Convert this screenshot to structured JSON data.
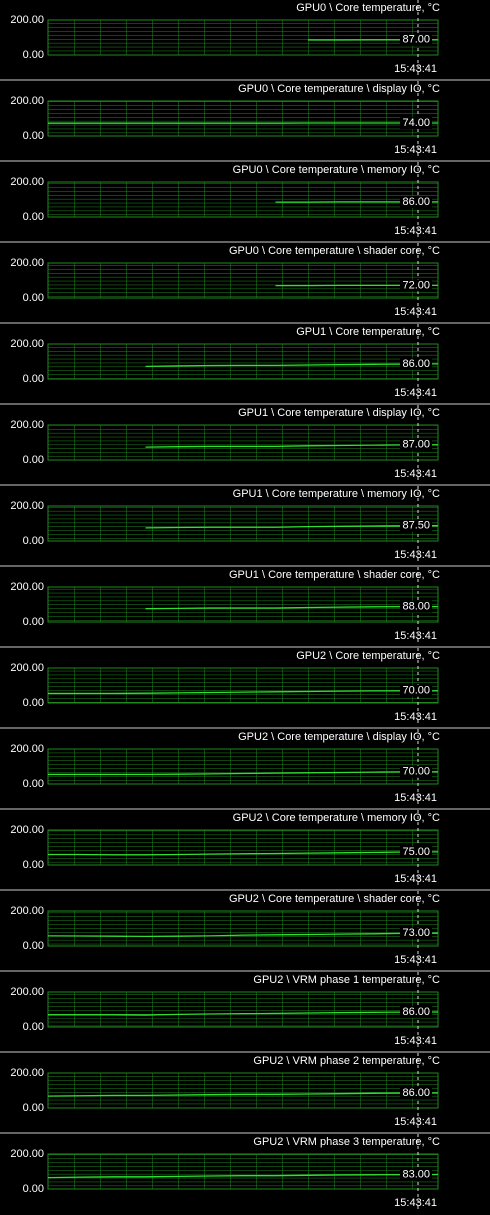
{
  "chart_data": [
    {
      "type": "line",
      "title": "GPU0 \\ Core temperature, °C",
      "time": "15:43:41",
      "color": "#2fe02f",
      "ylim": [
        0,
        200
      ],
      "yticks": [
        {
          "value": 0,
          "label": "0.00"
        },
        {
          "value": 200,
          "label": "200.00"
        }
      ],
      "values": [
        null,
        null,
        null,
        null,
        null,
        null,
        null,
        null,
        86,
        86,
        87,
        87,
        87
      ],
      "value_labels": [
        null,
        null,
        null,
        null,
        null,
        null,
        null,
        null,
        null,
        null,
        null,
        null,
        "87.00"
      ]
    },
    {
      "type": "line",
      "title": "GPU0 \\ Core temperature \\ display IO, °C",
      "time": "15:43:41",
      "color": "#2fe02f",
      "ylim": [
        0,
        200
      ],
      "yticks": [
        {
          "value": 0,
          "label": "0.00"
        },
        {
          "value": 200,
          "label": "200.00"
        }
      ],
      "values": [
        73,
        73,
        73,
        73,
        73,
        73,
        73,
        73,
        74,
        74,
        74,
        74,
        74
      ],
      "value_labels": [
        null,
        null,
        null,
        null,
        null,
        null,
        null,
        null,
        null,
        null,
        null,
        null,
        "74.00"
      ]
    },
    {
      "type": "line",
      "title": "GPU0 \\ Core temperature \\ memory IO, °C",
      "time": "15:43:41",
      "color": "#2fe02f",
      "ylim": [
        0,
        200
      ],
      "yticks": [
        {
          "value": 0,
          "label": "0.00"
        },
        {
          "value": 200,
          "label": "200.00"
        }
      ],
      "values": [
        null,
        null,
        null,
        null,
        null,
        null,
        null,
        85,
        85,
        86,
        86,
        86,
        86
      ],
      "value_labels": [
        null,
        null,
        null,
        null,
        null,
        null,
        null,
        null,
        null,
        null,
        null,
        null,
        "86.00"
      ]
    },
    {
      "type": "line",
      "title": "GPU0 \\ Core temperature \\ shader core, °C",
      "time": "15:43:41",
      "color": "#2fe02f",
      "ylim": [
        0,
        200
      ],
      "yticks": [
        {
          "value": 0,
          "label": "0.00"
        },
        {
          "value": 200,
          "label": "200.00"
        }
      ],
      "values": [
        null,
        null,
        null,
        null,
        null,
        null,
        null,
        71,
        71,
        72,
        72,
        72,
        72
      ],
      "value_labels": [
        null,
        null,
        null,
        null,
        null,
        null,
        null,
        null,
        null,
        null,
        null,
        null,
        "72.00"
      ]
    },
    {
      "type": "line",
      "title": "GPU1 \\ Core temperature, °C",
      "time": "15:43:41",
      "color": "#2fe02f",
      "ylim": [
        0,
        200
      ],
      "yticks": [
        {
          "value": 0,
          "label": "0.00"
        },
        {
          "value": 200,
          "label": "200.00"
        }
      ],
      "values": [
        null,
        null,
        null,
        72,
        75,
        77,
        78,
        78,
        80,
        82,
        84,
        85,
        86
      ],
      "value_labels": [
        null,
        null,
        null,
        null,
        null,
        null,
        null,
        null,
        null,
        null,
        null,
        null,
        "86.00"
      ]
    },
    {
      "type": "line",
      "title": "GPU1 \\ Core temperature \\ display IO, °C",
      "time": "15:43:41",
      "color": "#2fe02f",
      "ylim": [
        0,
        200
      ],
      "yticks": [
        {
          "value": 0,
          "label": "0.00"
        },
        {
          "value": 200,
          "label": "200.00"
        }
      ],
      "values": [
        null,
        null,
        null,
        74,
        76,
        78,
        78,
        78,
        81,
        83,
        85,
        86,
        87
      ],
      "value_labels": [
        null,
        null,
        null,
        null,
        null,
        null,
        null,
        null,
        null,
        null,
        null,
        null,
        "87.00"
      ]
    },
    {
      "type": "line",
      "title": "GPU1 \\ Core temperature \\ memory IO, °C",
      "time": "15:43:41",
      "color": "#2fe02f",
      "ylim": [
        0,
        200
      ],
      "yticks": [
        {
          "value": 0,
          "label": "0.00"
        },
        {
          "value": 200,
          "label": "200.00"
        }
      ],
      "values": [
        null,
        null,
        null,
        75,
        77,
        79,
        79,
        79,
        82,
        84,
        86,
        87,
        87.5
      ],
      "value_labels": [
        null,
        null,
        null,
        null,
        null,
        null,
        null,
        null,
        null,
        null,
        null,
        null,
        "87.50"
      ]
    },
    {
      "type": "line",
      "title": "GPU1 \\ Core temperature \\ shader core, °C",
      "time": "15:43:41",
      "color": "#2fe02f",
      "ylim": [
        0,
        200
      ],
      "yticks": [
        {
          "value": 0,
          "label": "0.00"
        },
        {
          "value": 200,
          "label": "200.00"
        }
      ],
      "values": [
        null,
        null,
        null,
        76,
        78,
        80,
        80,
        80,
        83,
        85,
        87,
        88,
        88
      ],
      "value_labels": [
        null,
        null,
        null,
        null,
        null,
        null,
        null,
        null,
        null,
        null,
        null,
        null,
        "88.00"
      ]
    },
    {
      "type": "line",
      "title": "GPU2 \\ Core temperature, °C",
      "time": "15:43:41",
      "color": "#2fe02f",
      "ylim": [
        0,
        200
      ],
      "yticks": [
        {
          "value": 0,
          "label": "0.00"
        },
        {
          "value": 200,
          "label": "200.00"
        }
      ],
      "values": [
        55,
        55,
        55,
        56,
        58,
        60,
        62,
        64,
        66,
        68,
        69,
        70,
        70
      ],
      "value_labels": [
        null,
        null,
        null,
        null,
        null,
        null,
        null,
        null,
        null,
        null,
        null,
        null,
        "70.00"
      ]
    },
    {
      "type": "line",
      "title": "GPU2 \\ Core temperature \\ display IO, °C",
      "time": "15:43:41",
      "color": "#2fe02f",
      "ylim": [
        0,
        200
      ],
      "yticks": [
        {
          "value": 0,
          "label": "0.00"
        },
        {
          "value": 200,
          "label": "200.00"
        }
      ],
      "values": [
        55,
        55,
        55,
        55,
        56,
        58,
        60,
        62,
        64,
        66,
        68,
        69,
        70
      ],
      "value_labels": [
        null,
        null,
        null,
        null,
        null,
        null,
        null,
        null,
        null,
        null,
        null,
        null,
        "70.00"
      ]
    },
    {
      "type": "line",
      "title": "GPU2 \\ Core temperature \\ memory IO, °C",
      "time": "15:43:41",
      "color": "#2fe02f",
      "ylim": [
        0,
        200
      ],
      "yticks": [
        {
          "value": 0,
          "label": "0.00"
        },
        {
          "value": 200,
          "label": "200.00"
        }
      ],
      "values": [
        60,
        60,
        58,
        58,
        60,
        62,
        64,
        66,
        68,
        70,
        72,
        74,
        75
      ],
      "value_labels": [
        null,
        null,
        null,
        null,
        null,
        null,
        null,
        null,
        null,
        null,
        null,
        null,
        "75.00"
      ]
    },
    {
      "type": "line",
      "title": "GPU2 \\ Core temperature \\ shader core, °C",
      "time": "15:43:41",
      "color": "#2fe02f",
      "ylim": [
        0,
        200
      ],
      "yticks": [
        {
          "value": 0,
          "label": "0.00"
        },
        {
          "value": 200,
          "label": "200.00"
        }
      ],
      "values": [
        58,
        57,
        56,
        55,
        56,
        58,
        62,
        64,
        66,
        68,
        70,
        72,
        73
      ],
      "value_labels": [
        null,
        null,
        null,
        null,
        null,
        null,
        null,
        null,
        null,
        null,
        null,
        null,
        "73.00"
      ]
    },
    {
      "type": "line",
      "title": "GPU2 \\ VRM phase 1 temperature, °C",
      "time": "15:43:41",
      "color": "#2fe02f",
      "ylim": [
        0,
        200
      ],
      "yticks": [
        {
          "value": 0,
          "label": "0.00"
        },
        {
          "value": 200,
          "label": "200.00"
        }
      ],
      "values": [
        70,
        70,
        70,
        68,
        72,
        74,
        76,
        78,
        80,
        82,
        84,
        85,
        86
      ],
      "value_labels": [
        null,
        null,
        null,
        null,
        null,
        null,
        null,
        null,
        null,
        null,
        null,
        null,
        "86.00"
      ]
    },
    {
      "type": "line",
      "title": "GPU2 \\ VRM phase 2 temperature, °C",
      "time": "15:43:41",
      "color": "#2fe02f",
      "ylim": [
        0,
        200
      ],
      "yticks": [
        {
          "value": 0,
          "label": "0.00"
        },
        {
          "value": 200,
          "label": "200.00"
        }
      ],
      "values": [
        68,
        70,
        72,
        72,
        74,
        76,
        78,
        78,
        80,
        82,
        84,
        85,
        86
      ],
      "value_labels": [
        null,
        null,
        null,
        null,
        null,
        null,
        null,
        null,
        null,
        null,
        null,
        null,
        "86.00"
      ]
    },
    {
      "type": "line",
      "title": "GPU2 \\ VRM phase 3 temperature, °C",
      "time": "15:43:41",
      "color": "#2fe02f",
      "ylim": [
        0,
        200
      ],
      "yticks": [
        {
          "value": 0,
          "label": "0.00"
        },
        {
          "value": 200,
          "label": "200.00"
        }
      ],
      "values": [
        65,
        68,
        70,
        70,
        72,
        74,
        76,
        76,
        78,
        80,
        81,
        82,
        83
      ],
      "value_labels": [
        null,
        null,
        null,
        null,
        null,
        null,
        null,
        null,
        null,
        null,
        null,
        null,
        "83.00"
      ]
    }
  ]
}
